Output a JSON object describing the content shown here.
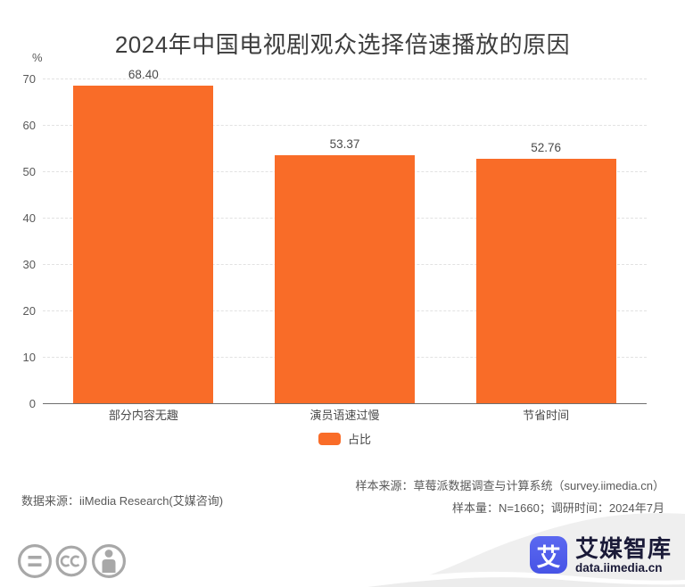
{
  "title": "2024年中国电视剧观众选择倍速播放的原因",
  "chart_data": {
    "type": "bar",
    "categories": [
      "部分内容无趣",
      "演员语速过慢",
      "节省时间"
    ],
    "values": [
      68.4,
      53.37,
      52.76
    ],
    "value_labels": [
      "68.40",
      "53.37",
      "52.76"
    ],
    "series_name": "占比",
    "title": "2024年中国电视剧观众选择倍速播放的原因",
    "xlabel": "",
    "ylabel": "%",
    "ylim": [
      0,
      70
    ],
    "yticks": [
      0,
      10,
      20,
      30,
      40,
      50,
      60,
      70
    ],
    "grid": "horizontal-dashed",
    "legend_position": "bottom-center",
    "bar_color": "#f96c28"
  },
  "legend": {
    "label": "占比",
    "color": "#f96c28"
  },
  "unit_label": "%",
  "footer": {
    "data_source": "数据来源：iiMedia Research(艾媒咨询)",
    "sample_source": "样本来源：草莓派数据调查与计算系统（survey.iimedia.cn）",
    "sample_info": "样本量：N=1660；调研时间：2024年7月"
  },
  "branding": {
    "logo_glyph": "艾",
    "logo_name": "艾媒智库",
    "logo_domain": "data.iimedia.cn",
    "logo_color": "#4c5ce8"
  },
  "icons": [
    "equals-icon",
    "creative-commons-icon",
    "person-icon"
  ],
  "colors": {
    "bar": "#f96c28",
    "title_text": "#3d3d3d",
    "axis_text": "#595959",
    "gridline": "#e2e2e2",
    "axis_line": "#6f6f6f",
    "wave": "#efefef",
    "brand_blue": "#4c5ce8",
    "brand_text": "#1a1a38",
    "cc_gray": "#a8a8a8"
  }
}
